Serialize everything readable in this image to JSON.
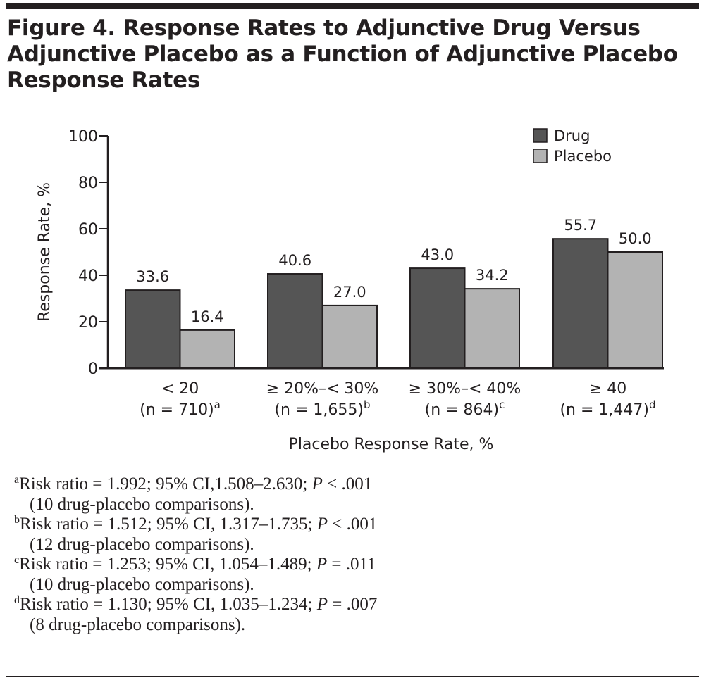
{
  "title": "Figure 4. Response Rates to Adjunctive Drug Versus Adjunctive Placebo as a Function of Adjunctive Placebo Response Rates",
  "chart_data": {
    "type": "bar",
    "title": "",
    "xlabel": "Placebo Response Rate, %",
    "ylabel": "Response Rate, %",
    "ylim": [
      0,
      100
    ],
    "yticks": [
      0,
      20,
      40,
      60,
      80,
      100
    ],
    "grid": false,
    "legend_position": "top-right",
    "categories": [
      {
        "label": "< 20",
        "n": "(n = 710)",
        "sup": "a"
      },
      {
        "label": "≥ 20%–< 30%",
        "n": "(n = 1,655)",
        "sup": "b"
      },
      {
        "label": "≥ 30%–< 40%",
        "n": "(n = 864)",
        "sup": "c"
      },
      {
        "label": "≥ 40",
        "n": "(n = 1,447)",
        "sup": "d"
      }
    ],
    "series": [
      {
        "name": "Drug",
        "color": "#555555",
        "values": [
          33.6,
          40.6,
          43.0,
          55.7
        ],
        "labels": [
          "33.6",
          "40.6",
          "43.0",
          "55.7"
        ]
      },
      {
        "name": "Placebo",
        "color": "#b3b3b3",
        "values": [
          16.4,
          27.0,
          34.2,
          50.0
        ],
        "labels": [
          "16.4",
          "27.0",
          "34.2",
          "50.0"
        ]
      }
    ]
  },
  "footnotes": [
    {
      "mark": "a",
      "line1_pre": "Risk ratio = 1.992; 95% CI,1.508–2.630; ",
      "p": "P",
      "line1_post": " < .001",
      "line2": "(10 drug-placebo comparisons)."
    },
    {
      "mark": "b",
      "line1_pre": "Risk ratio = 1.512; 95% CI, 1.317–1.735; ",
      "p": "P",
      "line1_post": " < .001",
      "line2": "(12 drug-placebo comparisons)."
    },
    {
      "mark": "c",
      "line1_pre": "Risk ratio = 1.253; 95% CI, 1.054–1.489; ",
      "p": "P",
      "line1_post": " = .011",
      "line2": "(10 drug-placebo comparisons)."
    },
    {
      "mark": "d",
      "line1_pre": "Risk ratio = 1.130; 95% CI, 1.035–1.234; ",
      "p": "P",
      "line1_post": " = .007",
      "line2": "(8 drug-placebo comparisons)."
    }
  ]
}
